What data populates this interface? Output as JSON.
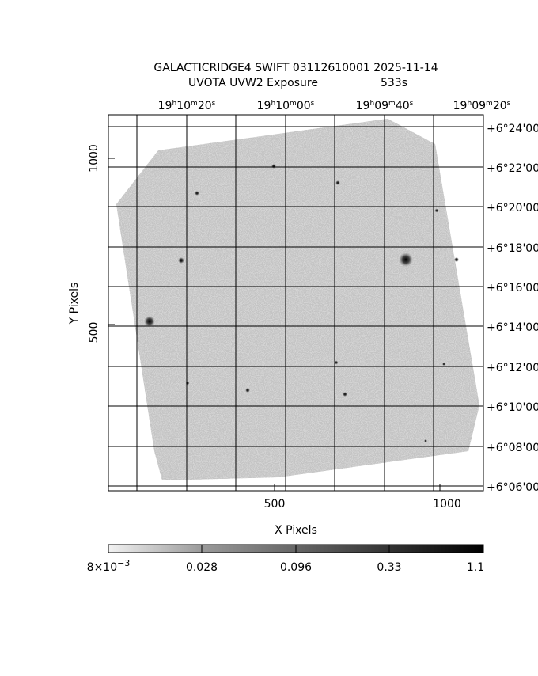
{
  "header": {
    "title": "GALACTICRIDGE4 SWIFT 03112610001 2025-11-14",
    "subtitle": [
      "UVOTA UVW2 Exposure",
      "533s"
    ]
  },
  "top_axis": {
    "labels": [
      "19h10m20s",
      "19h10m00s",
      "19h09m40s",
      "19h09m20s"
    ]
  },
  "right_axis": {
    "labels": [
      "+6°24'00",
      "+6°22'00",
      "+6°20'00",
      "+6°18'00",
      "+6°16'00",
      "+6°14'00",
      "+6°12'00",
      "+6°10'00",
      "+6°08'00",
      "+6°06'00"
    ]
  },
  "bottom_axis": {
    "title": "X Pixels",
    "labels": [
      "500",
      "1000"
    ]
  },
  "left_axis": {
    "title": "Y Pixels",
    "labels": [
      "1000",
      "500"
    ]
  },
  "colorbar": {
    "labels": [
      {
        "base": "8×10",
        "exponent": "−3"
      },
      "0.028",
      "0.096",
      "0.33",
      "1.1"
    ]
  }
}
